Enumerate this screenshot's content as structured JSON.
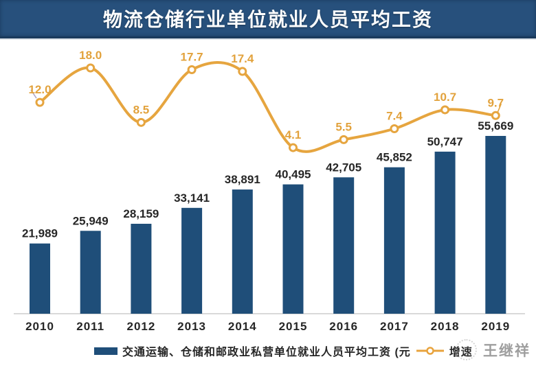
{
  "title": "物流仓储行业单位就业人员平均工资",
  "legend": {
    "bar_label": "交通运输、仓储和邮政业私营单位就业人员平均工资 (元",
    "line_label": "增速"
  },
  "watermark": {
    "text": "王继祥"
  },
  "colors": {
    "banner_bg": "#27507C",
    "bar": "#1F4E79",
    "line": "#E6A53F",
    "marker_fill": "#FFFFFF",
    "bar_value_label": "#262626",
    "line_value_label": "#E2A23C",
    "category_label": "#262626",
    "axis_line": "#D9D9D9",
    "title_text": "#FFFFFF",
    "watermark_text": "#9E9E9E"
  },
  "chart_data": {
    "type": "bar",
    "title": "物流仓储行业单位就业人员平均工资",
    "categories": [
      "2010",
      "2011",
      "2012",
      "2013",
      "2014",
      "2015",
      "2016",
      "2017",
      "2018",
      "2019"
    ],
    "series": [
      {
        "name": "交通运输、仓储和邮政业私营单位就业人员平均工资 (元",
        "type": "bar",
        "values": [
          21989,
          25949,
          28159,
          33141,
          38891,
          40495,
          42705,
          45852,
          50747,
          55669
        ]
      },
      {
        "name": "增速",
        "type": "line",
        "values": [
          12.0,
          18.0,
          8.5,
          17.7,
          17.4,
          4.1,
          5.5,
          7.4,
          10.7,
          9.7
        ]
      }
    ],
    "xlabel": "",
    "ylabel": "",
    "grid": false,
    "legend_position": "bottom",
    "data_labels": true,
    "bar_axis_range": [
      0,
      60000
    ],
    "line_axis_range": [
      0,
      20
    ]
  }
}
